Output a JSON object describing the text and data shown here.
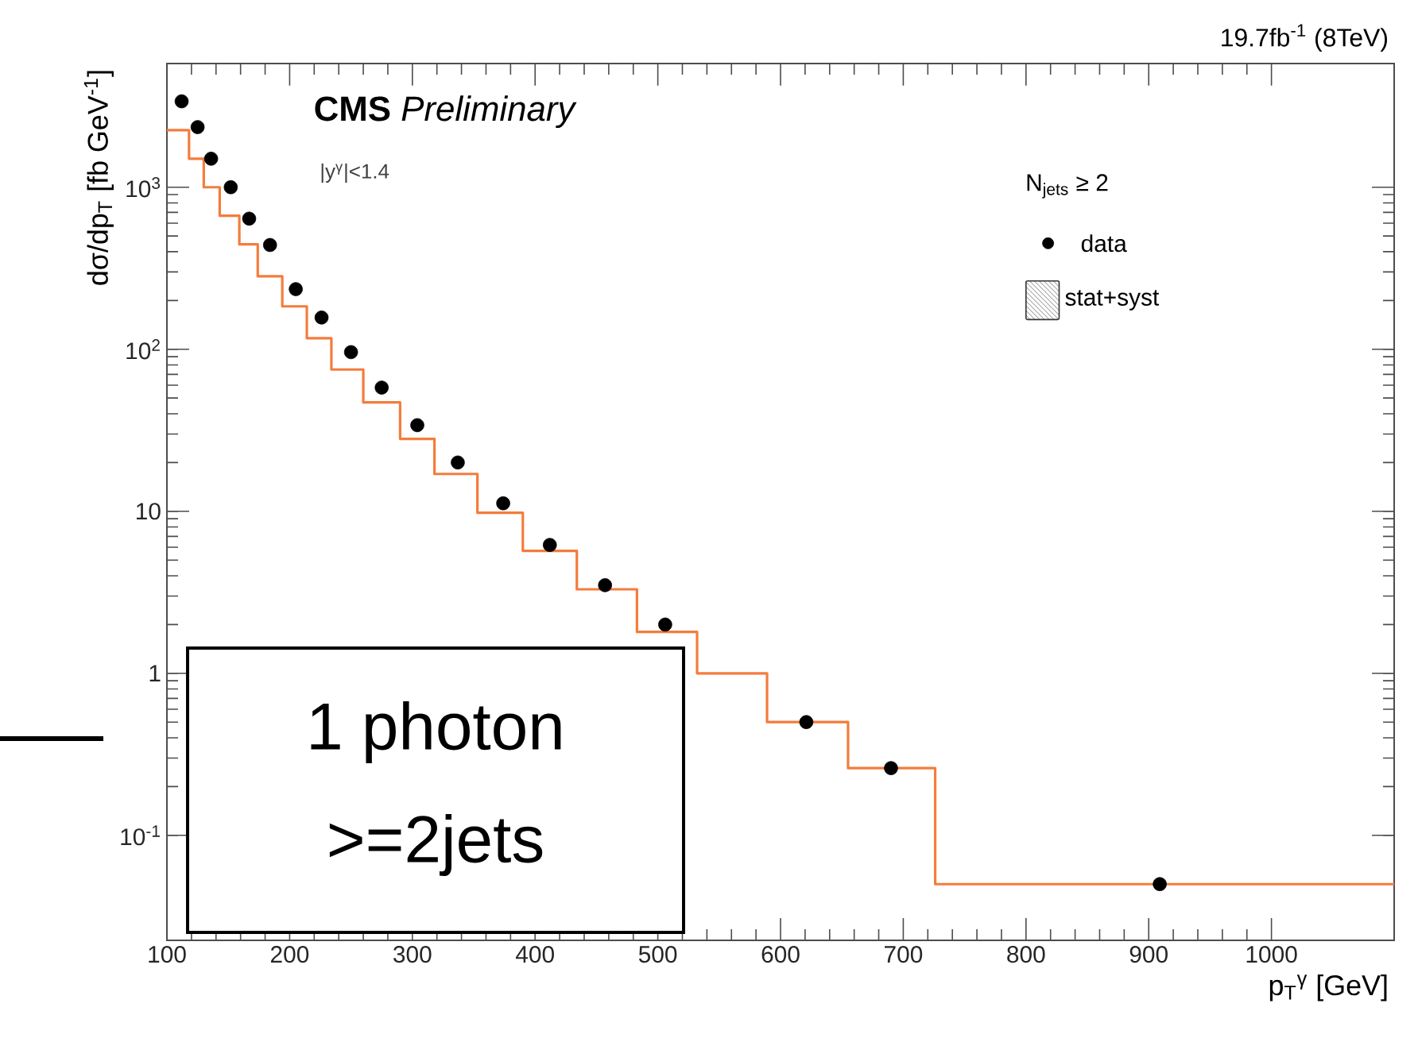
{
  "chart_data": {
    "type": "scatter",
    "xlabel": "p$_{T}$$^{γ}$ [GeV]",
    "ylabel": "dσ/dp$_{T}$ [fb GeV$^{-1}$]",
    "legend_title": "N$_{jets}$ ≥ 2",
    "annotations": [
      "**CMS** *Preliminary*",
      "|y$^{γ}$|<1.4",
      "19.7fb$^{-1}$ (8TeV)",
      "stat+syst",
      "1 photon",
      ">=2jets"
    ],
    "xlim": [
      100,
      1100
    ],
    "xticks": [
      100,
      200,
      300,
      400,
      500,
      600,
      700,
      800,
      900,
      1000
    ],
    "ylim": [
      0.0225,
      5800
    ],
    "log": "y",
    "yticks": [
      {
        "value": 0.1,
        "label": "10$^{-1}$"
      },
      1,
      10,
      {
        "value": 100,
        "label": "10$^{2}$"
      },
      {
        "value": 1000,
        "label": "10$^{3}$"
      }
    ],
    "legend": "top right",
    "grid": false,
    "series": [
      {
        "name": "data",
        "type": "scatter",
        "marker": "circle",
        "color": "#000000",
        "x": [
          112,
          125,
          136,
          152,
          167,
          184,
          205,
          226,
          250,
          275,
          304,
          337,
          374,
          412,
          457,
          506,
          560,
          621,
          690,
          909
        ],
        "values": [
          3390,
          2350,
          1500,
          1000,
          640,
          440,
          235,
          157,
          96,
          58,
          34,
          20,
          11.2,
          6.2,
          3.5,
          2.0,
          null,
          0.5,
          0.26,
          0.05
        ]
      },
      {
        "type": "histogram",
        "color": "#f47c3c",
        "bins": [
          100,
          118,
          130,
          143,
          159,
          174,
          194,
          214,
          234,
          260,
          290,
          318,
          353,
          390,
          434,
          483,
          532,
          589,
          655,
          726,
          1100
        ],
        "values": [
          2250,
          1500,
          1000,
          667,
          444,
          282,
          184,
          117,
          75,
          47,
          28,
          17,
          9.8,
          5.7,
          3.3,
          1.8,
          1.0,
          0.5,
          0.26,
          0.05
        ]
      }
    ]
  }
}
